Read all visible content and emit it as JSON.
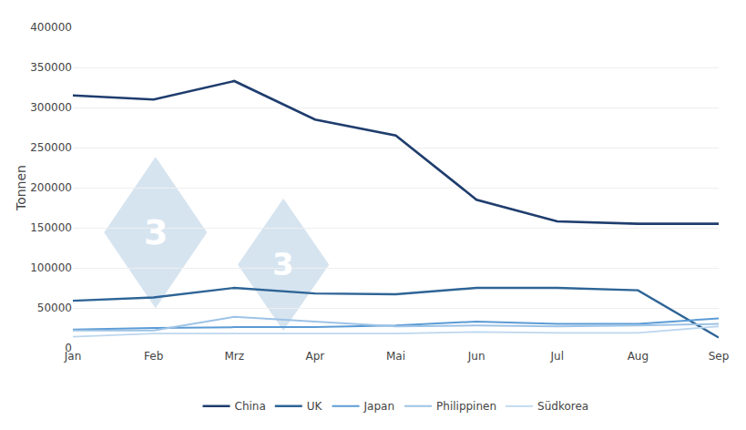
{
  "chart_data": {
    "type": "line",
    "categories": [
      "Jan",
      "Feb",
      "Mrz",
      "Apr",
      "Mai",
      "Jun",
      "Jul",
      "Aug",
      "Sep"
    ],
    "series": [
      {
        "name": "China",
        "color": "#1f3d6e",
        "values": [
          315000,
          310000,
          333000,
          285000,
          265000,
          185000,
          158000,
          155000,
          155000
        ]
      },
      {
        "name": "UK",
        "color": "#2e6496",
        "values": [
          59000,
          63000,
          75000,
          68000,
          67000,
          75000,
          75000,
          72000,
          13000
        ]
      },
      {
        "name": "Japan",
        "color": "#5b9bd5",
        "values": [
          23000,
          25000,
          26000,
          26000,
          28000,
          33000,
          30000,
          30000,
          37000
        ]
      },
      {
        "name": "Philippinen",
        "color": "#9dc3e6",
        "values": [
          22000,
          22000,
          39000,
          33000,
          27000,
          28000,
          27000,
          28000,
          30000
        ]
      },
      {
        "name": "Südkorea",
        "color": "#bdd7ee",
        "values": [
          14000,
          18000,
          18000,
          18000,
          18000,
          20000,
          19000,
          19000,
          27000
        ]
      }
    ],
    "ylabel": "Tonnen",
    "ylim": [
      0,
      400000
    ],
    "yticks": [
      0,
      50000,
      100000,
      150000,
      200000,
      250000,
      300000,
      350000,
      400000
    ],
    "grid": true,
    "legend": "bottom",
    "annotations": [
      {
        "text": "3"
      },
      {
        "text": "3"
      }
    ]
  }
}
